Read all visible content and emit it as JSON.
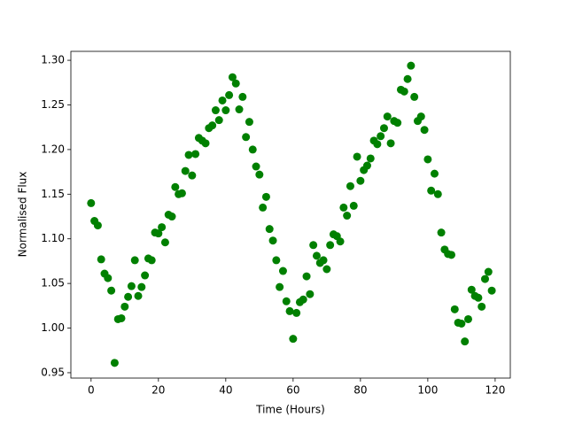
{
  "chart_data": {
    "type": "scatter",
    "xlabel": "Time (Hours)",
    "ylabel": "Normalised Flux",
    "color": "#008000",
    "x": [
      0,
      1,
      2,
      3,
      4,
      5,
      6,
      7,
      8,
      9,
      10,
      11,
      12,
      13,
      14,
      15,
      16,
      17,
      18,
      19,
      20,
      21,
      22,
      23,
      24,
      25,
      26,
      27,
      28,
      29,
      30,
      31,
      32,
      33,
      34,
      35,
      36,
      37,
      38,
      39,
      40,
      41,
      42,
      43,
      44,
      45,
      46,
      47,
      48,
      49,
      50,
      51,
      52,
      53,
      54,
      55,
      56,
      57,
      58,
      59,
      60,
      61,
      62,
      63,
      64,
      65,
      66,
      67,
      68,
      69,
      70,
      71,
      72,
      73,
      74,
      75,
      76,
      77,
      78,
      79,
      80,
      81,
      82,
      83,
      84,
      85,
      86,
      87,
      88,
      89,
      90,
      91,
      92,
      93,
      94,
      95,
      96,
      97,
      98,
      99,
      100,
      101,
      102,
      103,
      104,
      105,
      106,
      107,
      108,
      109,
      110,
      111,
      112,
      113,
      114,
      115,
      116,
      117,
      118,
      119
    ],
    "values": [
      1.14,
      1.12,
      1.115,
      1.077,
      1.061,
      1.056,
      1.042,
      0.961,
      1.01,
      1.011,
      1.024,
      1.035,
      1.047,
      1.076,
      1.036,
      1.046,
      1.059,
      1.078,
      1.076,
      1.107,
      1.106,
      1.113,
      1.096,
      1.127,
      1.125,
      1.158,
      1.15,
      1.151,
      1.176,
      1.194,
      1.171,
      1.195,
      1.213,
      1.21,
      1.207,
      1.224,
      1.227,
      1.244,
      1.233,
      1.255,
      1.244,
      1.261,
      1.281,
      1.274,
      1.245,
      1.259,
      1.214,
      1.231,
      1.2,
      1.181,
      1.172,
      1.135,
      1.147,
      1.111,
      1.098,
      1.076,
      1.046,
      1.064,
      1.03,
      1.019,
      0.988,
      1.017,
      1.029,
      1.032,
      1.058,
      1.038,
      1.093,
      1.081,
      1.073,
      1.076,
      1.066,
      1.093,
      1.105,
      1.103,
      1.097,
      1.135,
      1.126,
      1.159,
      1.137,
      1.192,
      1.165,
      1.177,
      1.182,
      1.19,
      1.21,
      1.206,
      1.215,
      1.224,
      1.237,
      1.207,
      1.232,
      1.23,
      1.267,
      1.265,
      1.279,
      1.294,
      1.259,
      1.232,
      1.237,
      1.222,
      1.189,
      1.154,
      1.173,
      1.15,
      1.107,
      1.088,
      1.083,
      1.082,
      1.021,
      1.006,
      1.005,
      0.985,
      1.01,
      1.043,
      1.036,
      1.034,
      1.024,
      1.055,
      1.063,
      1.042
    ],
    "xlim": [
      -6,
      124.5
    ],
    "ylim": [
      0.944,
      1.31
    ],
    "xticks": [
      0,
      20,
      40,
      60,
      80,
      100,
      120
    ],
    "yticks": [
      0.95,
      {
        "value": 1.0,
        "label": "1.00"
      },
      1.05,
      {
        "value": 1.1,
        "label": "1.10"
      },
      1.15,
      {
        "value": 1.2,
        "label": "1.20"
      },
      1.25,
      {
        "value": 1.3,
        "label": "1.30"
      }
    ]
  }
}
